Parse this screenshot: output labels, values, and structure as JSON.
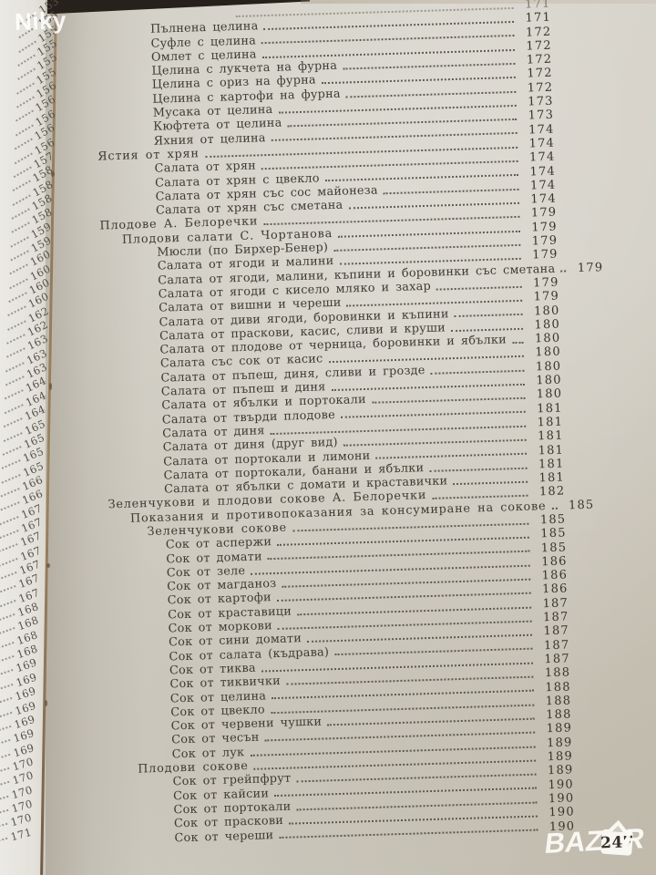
{
  "watermarks": {
    "photo_owner": "Niky",
    "store_logo_left": "BAZ",
    "store_logo_right": "R"
  },
  "book": {
    "printed_page_number": "247",
    "left_page_numbers": [
      "153",
      "155",
      "155",
      "155",
      "155",
      "155",
      "156",
      "156",
      "156",
      "156",
      "156",
      "157",
      "158",
      "158",
      "158",
      "158",
      "159",
      "159",
      "160",
      "160",
      "160",
      "160",
      "162",
      "162",
      "163",
      "163",
      "163",
      "164",
      "164",
      "164",
      "165",
      "165",
      "165",
      "165",
      "166",
      "166",
      "167",
      "167",
      "167",
      "167",
      "167",
      "167",
      "167",
      "168",
      "168",
      "168",
      "168",
      "169",
      "169",
      "169",
      "169",
      "169",
      "169",
      "169",
      "170",
      "170",
      "170",
      "170",
      "170",
      "171"
    ],
    "toc": {
      "rows": [
        {
          "label": "",
          "page": "171",
          "indent": 4
        },
        {
          "label": "Пълнена целина",
          "page": "171",
          "indent": 3
        },
        {
          "label": "Суфле с целина",
          "page": "172",
          "indent": 3
        },
        {
          "label": "Омлет с целина",
          "page": "172",
          "indent": 3
        },
        {
          "label": "Целина с лукчета на фурна",
          "page": "172",
          "indent": 3
        },
        {
          "label": "Целина с ориз на фурна",
          "page": "172",
          "indent": 3
        },
        {
          "label": "Целина с картофи на фурна",
          "page": "172",
          "indent": 3
        },
        {
          "label": "Мусака от целина",
          "page": "173",
          "indent": 3
        },
        {
          "label": "Кюфтета от целина",
          "page": "173",
          "indent": 3
        },
        {
          "label": "Яхния от целина",
          "page": "174",
          "indent": 3
        },
        {
          "label": "Ястия от хрян",
          "page": "174",
          "indent": 0
        },
        {
          "label": "Салата от хрян",
          "page": "174",
          "indent": 3
        },
        {
          "label": "Салата от хрян с цвекло",
          "page": "174",
          "indent": 3
        },
        {
          "label": "Салата от хрян със сос майонеза",
          "page": "174",
          "indent": 3
        },
        {
          "label": "Салата от хрян със сметана",
          "page": "174",
          "indent": 3
        },
        {
          "label": "Плодове А. Белоречки",
          "page": "179",
          "indent": 0
        },
        {
          "label": "Плодови салати С. Чортанова",
          "page": "179",
          "indent": 1
        },
        {
          "label": "Мюсли (по Бирхер-Бенер)",
          "page": "179",
          "indent": 3
        },
        {
          "label": "Салата от ягоди и малини",
          "page": "179",
          "indent": 3
        },
        {
          "label": "Салата от ягоди, малини, къпини и боровинки със сметана",
          "page": "179",
          "indent": 3
        },
        {
          "label": "Салата от ягоди с кисело мляко и захар",
          "page": "179",
          "indent": 3
        },
        {
          "label": "Салата от вишни и череши",
          "page": "179",
          "indent": 3
        },
        {
          "label": "Салата от диви ягоди, боровинки и къпини",
          "page": "180",
          "indent": 3
        },
        {
          "label": "Салата от праскови, касис, сливи и круши",
          "page": "180",
          "indent": 3
        },
        {
          "label": "Салата от плодове от черница, боровинки и ябълки",
          "page": "180",
          "indent": 3
        },
        {
          "label": "Салата със сок от касис",
          "page": "180",
          "indent": 3
        },
        {
          "label": "Салата от пъпеш, диня, сливи и грозде",
          "page": "180",
          "indent": 3
        },
        {
          "label": "Салата от пъпеш и диня",
          "page": "180",
          "indent": 3
        },
        {
          "label": "Салата от ябълки и портокали",
          "page": "180",
          "indent": 3
        },
        {
          "label": "Салата от твърди плодове",
          "page": "181",
          "indent": 3
        },
        {
          "label": "Салата от диня",
          "page": "181",
          "indent": 3
        },
        {
          "label": "Салата от диня (друг вид)",
          "page": "181",
          "indent": 3
        },
        {
          "label": "Салата от портокали и лимони",
          "page": "181",
          "indent": 3
        },
        {
          "label": "Салата от портокали, банани и ябълки",
          "page": "181",
          "indent": 3
        },
        {
          "label": "Салата от ябълки с домати и краставички",
          "page": "181",
          "indent": 3
        },
        {
          "label": "Зеленчукови и плодови сокове А. Белоречки",
          "page": "182",
          "indent": 0
        },
        {
          "label": "Показания и противопоказания за консумиране на сокове",
          "page": "185",
          "indent": 1
        },
        {
          "label": "Зеленчукови сокове",
          "page": "185",
          "indent": 2
        },
        {
          "label": "Сок от аспержи",
          "page": "185",
          "indent": 3
        },
        {
          "label": "Сок от домати",
          "page": "185",
          "indent": 3
        },
        {
          "label": "Сок от зеле",
          "page": "186",
          "indent": 3
        },
        {
          "label": "Сок от магданоз",
          "page": "186",
          "indent": 3
        },
        {
          "label": "Сок от картофи",
          "page": "186",
          "indent": 3
        },
        {
          "label": "Сок от краставици",
          "page": "187",
          "indent": 3
        },
        {
          "label": "Сок от моркови",
          "page": "187",
          "indent": 3
        },
        {
          "label": "Сок от сини домати",
          "page": "187",
          "indent": 3
        },
        {
          "label": "Сок от салата (къдрава)",
          "page": "187",
          "indent": 3
        },
        {
          "label": "Сок от тиква",
          "page": "187",
          "indent": 3
        },
        {
          "label": "Сок от тиквички",
          "page": "188",
          "indent": 3
        },
        {
          "label": "Сок от целина",
          "page": "188",
          "indent": 3
        },
        {
          "label": "Сок от цвекло",
          "page": "188",
          "indent": 3
        },
        {
          "label": "Сок от червени чушки",
          "page": "188",
          "indent": 3
        },
        {
          "label": "Сок от чесън",
          "page": "189",
          "indent": 3
        },
        {
          "label": "Сок от лук",
          "page": "189",
          "indent": 3
        },
        {
          "label": "Плодови сокове",
          "page": "189",
          "indent": 1
        },
        {
          "label": "Сок от грейпфрут",
          "page": "189",
          "indent": 3
        },
        {
          "label": "Сок от кайсии",
          "page": "190",
          "indent": 3
        },
        {
          "label": "Сок от портокали",
          "page": "190",
          "indent": 3
        },
        {
          "label": "Сок от праскови",
          "page": "190",
          "indent": 3
        },
        {
          "label": "Сок от череши",
          "page": "190",
          "indent": 3
        }
      ]
    }
  },
  "colors": {
    "paper": "#d3cfc6",
    "ink": "#3e3a33",
    "left_paper": "#e3e1da",
    "edge_brown": "#8a6f4c",
    "dark_corner": "#26211b",
    "watermark_white": "#fcfaf5"
  }
}
